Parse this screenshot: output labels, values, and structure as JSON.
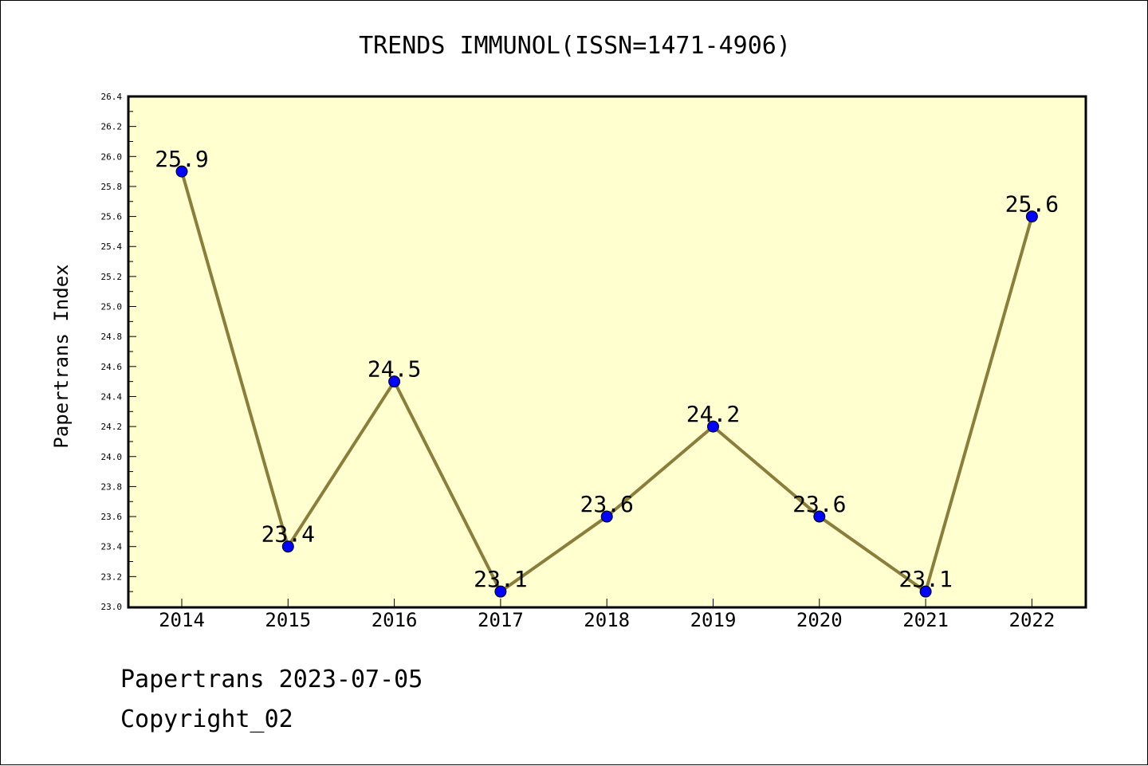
{
  "chart_data": {
    "type": "line",
    "title": "TRENDS IMMUNOL(ISSN=1471-4906)",
    "xlabel": "",
    "ylabel": "Papertrans Index",
    "categories": [
      "2014",
      "2015",
      "2016",
      "2017",
      "2018",
      "2019",
      "2020",
      "2021",
      "2022"
    ],
    "series": [
      {
        "values": [
          25.9,
          23.4,
          24.5,
          23.1,
          23.6,
          24.2,
          23.6,
          23.1,
          25.6
        ]
      }
    ],
    "data_labels": [
      "25.9",
      "23.4",
      "24.5",
      "23.1",
      "23.6",
      "24.2",
      "23.6",
      "23.1",
      "25.6"
    ],
    "ylim": [
      23.0,
      26.4
    ],
    "yticks": [
      "23.0",
      "23.2",
      "23.4",
      "23.6",
      "23.8",
      "24.0",
      "24.2",
      "24.4",
      "24.6",
      "24.8",
      "25.0",
      "25.2",
      "25.4",
      "25.6",
      "25.8",
      "26.0",
      "26.2",
      "26.4"
    ],
    "grid": false,
    "colors": {
      "plot_background": "#ffffd0",
      "line": "#8b7d3a",
      "marker": "#0000ff"
    }
  },
  "footer": {
    "line1": "Papertrans 2023-07-05",
    "line2": "Copyright_02"
  }
}
